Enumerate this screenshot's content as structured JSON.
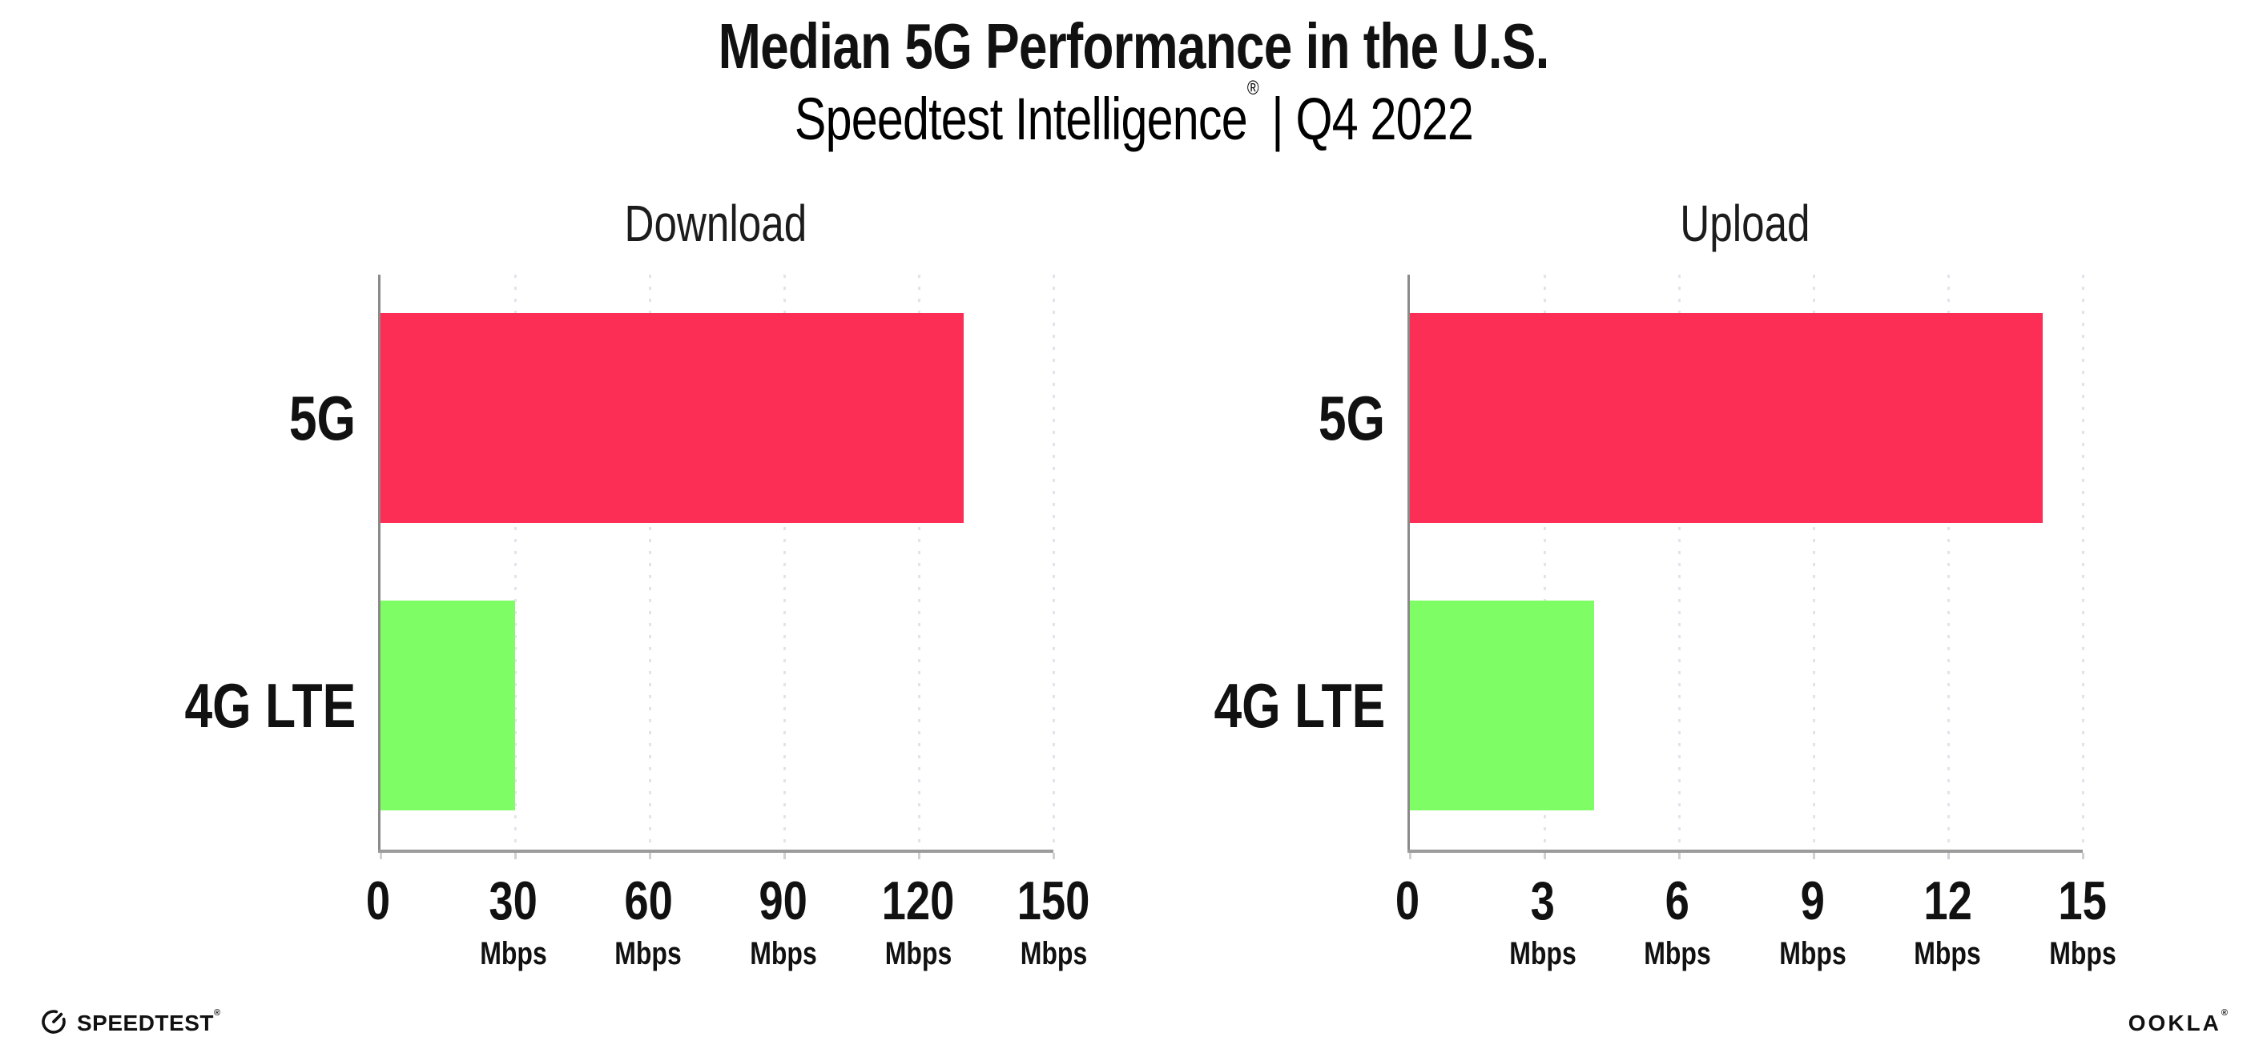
{
  "header": {
    "title": "Median 5G Performance in the U.S.",
    "subtitle": {
      "brand": "Speedtest Intelligence",
      "registered": "®",
      "separator_and_period": " | Q4 2022"
    }
  },
  "chart_data": [
    {
      "type": "bar",
      "orientation": "horizontal",
      "title": "Download",
      "categories": [
        "5G",
        "4G LTE"
      ],
      "values": [
        130,
        30
      ],
      "value_unit": "Mbps",
      "xlim": [
        0,
        150
      ],
      "xticks": [
        0,
        30,
        60,
        90,
        120,
        150
      ],
      "xtick_unit": "Mbps",
      "bar_colors": [
        "#FD2E56",
        "#7FFD64"
      ],
      "grid": "vertical-dotted",
      "legend": "none"
    },
    {
      "type": "bar",
      "orientation": "horizontal",
      "title": "Upload",
      "categories": [
        "5G",
        "4G LTE"
      ],
      "values": [
        14.1,
        4.1
      ],
      "value_unit": "Mbps",
      "xlim": [
        0,
        15
      ],
      "xticks": [
        0,
        3,
        6,
        9,
        12,
        15
      ],
      "xtick_unit": "Mbps",
      "bar_colors": [
        "#FD2E56",
        "#7FFD64"
      ],
      "grid": "vertical-dotted",
      "legend": "none"
    }
  ],
  "footer": {
    "speedtest": {
      "label": "SPEEDTEST",
      "registered": "®"
    },
    "ookla": {
      "label": "OOKLA",
      "registered": "®"
    }
  },
  "colors": {
    "bar_5g": "#FD2E56",
    "bar_4g_lte": "#7FFD64",
    "gridline": "#E3E3ED",
    "x_axis": "#9B9B9B",
    "y_axis": "#8A8A8A",
    "text": "#111111",
    "background": "#FFFFFF"
  }
}
